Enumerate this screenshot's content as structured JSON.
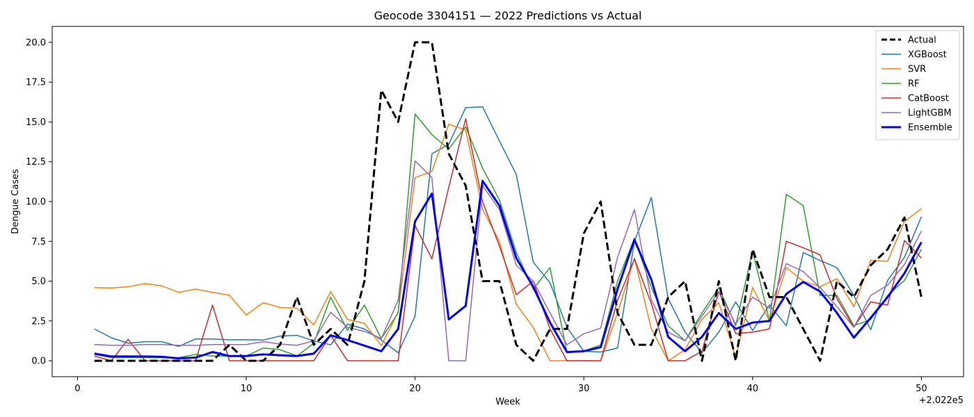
{
  "chart_data": {
    "type": "line",
    "title": "Geocode 3304151 — 2022 Predictions vs Actual",
    "xlabel": "Week",
    "ylabel": "Dengue Cases",
    "x_offset_label": "+2.022e5",
    "xlim": [
      -1.5,
      52.5
    ],
    "ylim": [
      -1.0,
      21.0
    ],
    "xticks": [
      0,
      10,
      20,
      30,
      40,
      50
    ],
    "yticks": [
      "0.0",
      "2.5",
      "5.0",
      "7.5",
      "10.0",
      "12.5",
      "15.0",
      "17.5",
      "20.0"
    ],
    "legend_position": "top-right",
    "x": [
      1,
      2,
      3,
      4,
      5,
      6,
      7,
      8,
      9,
      10,
      11,
      12,
      13,
      14,
      15,
      16,
      17,
      18,
      19,
      20,
      21,
      22,
      23,
      24,
      25,
      26,
      27,
      28,
      29,
      30,
      31,
      32,
      33,
      34,
      35,
      36,
      37,
      38,
      39,
      40,
      41,
      42,
      43,
      44,
      45,
      46,
      47,
      48,
      49,
      50
    ],
    "series": [
      {
        "name": "Actual",
        "color": "#000000",
        "width": 3,
        "dashed": true,
        "values": [
          0,
          0,
          0,
          0,
          0,
          0,
          0,
          0,
          1,
          0,
          0,
          1,
          4,
          1,
          2,
          1,
          5,
          17,
          15,
          20,
          20,
          13,
          11,
          5,
          5,
          1,
          0,
          2,
          2,
          8,
          10,
          3,
          1,
          1,
          4,
          5,
          0,
          5,
          0,
          7,
          4,
          4,
          2,
          0,
          5,
          4,
          6,
          7,
          9,
          4
        ]
      },
      {
        "name": "XGBoost",
        "color": "#1f77b4",
        "width": 1.5,
        "dashed": false,
        "values": [
          2.0,
          1.45,
          1.1,
          1.2,
          1.2,
          0.9,
          1.37,
          1.37,
          1.32,
          1.32,
          1.3,
          1.55,
          1.6,
          1.25,
          1.0,
          2.3,
          2.0,
          1.3,
          0.5,
          2.8,
          13.0,
          13.6,
          15.9,
          15.95,
          13.8,
          11.7,
          6.2,
          4.9,
          2.1,
          0.6,
          0.55,
          0.8,
          7.5,
          10.25,
          3.9,
          1.8,
          0.5,
          1.8,
          3.7,
          1.9,
          3.5,
          2.2,
          6.8,
          6.3,
          5.85,
          4.1,
          1.95,
          5.05,
          6.5,
          9.05
        ]
      },
      {
        "name": "SVR",
        "color": "#ff7f0e",
        "width": 1.5,
        "dashed": false,
        "values": [
          4.6,
          4.57,
          4.65,
          4.85,
          4.7,
          4.3,
          4.5,
          4.3,
          4.12,
          2.87,
          3.65,
          3.35,
          3.3,
          2.25,
          4.35,
          2.6,
          2.35,
          0.95,
          3.05,
          11.5,
          11.9,
          14.85,
          14.5,
          9.5,
          7.5,
          3.55,
          2.1,
          0.0,
          0.0,
          0.0,
          0.0,
          3.0,
          6.45,
          2.0,
          0.0,
          0.7,
          2.6,
          3.65,
          0.2,
          4.6,
          2.5,
          5.85,
          5.0,
          4.65,
          5.15,
          3.4,
          6.3,
          6.25,
          8.75,
          9.55
        ]
      },
      {
        "name": "RF",
        "color": "#2ca02c",
        "width": 1.5,
        "dashed": false,
        "values": [
          0.4,
          0.2,
          0.2,
          0.2,
          0.2,
          0.2,
          0.4,
          0.3,
          0.3,
          0.3,
          0.8,
          0.7,
          0.3,
          1.1,
          4.0,
          1.9,
          3.5,
          1.4,
          3.0,
          15.5,
          14.2,
          13.3,
          14.7,
          12.1,
          10.1,
          6.8,
          4.5,
          5.85,
          0.5,
          0.6,
          1.0,
          5.0,
          7.7,
          4.6,
          2.2,
          1.25,
          3.0,
          4.6,
          2.2,
          6.9,
          2.5,
          10.45,
          9.75,
          4.1,
          4.1,
          2.2,
          2.6,
          4.1,
          5.05,
          7.0
        ]
      },
      {
        "name": "CatBoost",
        "color": "#d62728",
        "width": 1.5,
        "dashed": false,
        "values": [
          0.3,
          0.0,
          1.35,
          0.0,
          0.0,
          0.0,
          0.0,
          3.5,
          0.0,
          0.0,
          0.0,
          0.0,
          0.0,
          0.0,
          1.6,
          0.0,
          0.0,
          0.0,
          0.0,
          8.5,
          6.4,
          10.9,
          15.2,
          10.0,
          7.2,
          4.15,
          5.0,
          2.0,
          0.0,
          0.0,
          0.0,
          3.8,
          6.4,
          3.6,
          0.0,
          0.0,
          0.6,
          4.35,
          1.7,
          1.8,
          2.0,
          7.5,
          7.1,
          6.65,
          3.9,
          2.1,
          3.7,
          3.5,
          7.55,
          6.45
        ]
      },
      {
        "name": "LightGBM",
        "color": "#9467bd",
        "width": 1.5,
        "dashed": false,
        "values": [
          1.02,
          0.97,
          0.97,
          1.02,
          1.02,
          0.97,
          0.97,
          1.02,
          1.02,
          1.02,
          1.2,
          1.05,
          0.97,
          1.25,
          3.05,
          2.1,
          1.85,
          1.4,
          3.8,
          12.55,
          11.5,
          0.0,
          0.0,
          11.0,
          9.5,
          6.0,
          5.0,
          3.0,
          1.0,
          1.7,
          2.05,
          6.5,
          9.5,
          3.8,
          1.8,
          1.25,
          2.8,
          4.35,
          2.3,
          4.0,
          3.3,
          6.1,
          5.6,
          4.6,
          3.4,
          2.1,
          4.1,
          4.75,
          6.05,
          8.15
        ]
      },
      {
        "name": "Ensemble",
        "color": "#0000ff",
        "width": 3,
        "dashed": false,
        "values": [
          0.45,
          0.27,
          0.27,
          0.27,
          0.25,
          0.15,
          0.2,
          0.55,
          0.3,
          0.3,
          0.4,
          0.35,
          0.3,
          0.45,
          1.6,
          1.3,
          0.95,
          0.6,
          2.0,
          8.75,
          10.5,
          2.6,
          3.45,
          11.3,
          9.75,
          6.45,
          4.65,
          2.4,
          0.55,
          0.6,
          0.85,
          4.5,
          7.6,
          5.1,
          1.5,
          0.6,
          1.5,
          3.0,
          2.0,
          2.4,
          2.5,
          4.2,
          4.95,
          4.35,
          3.0,
          1.45,
          2.7,
          4.0,
          5.5,
          7.45
        ]
      }
    ]
  }
}
